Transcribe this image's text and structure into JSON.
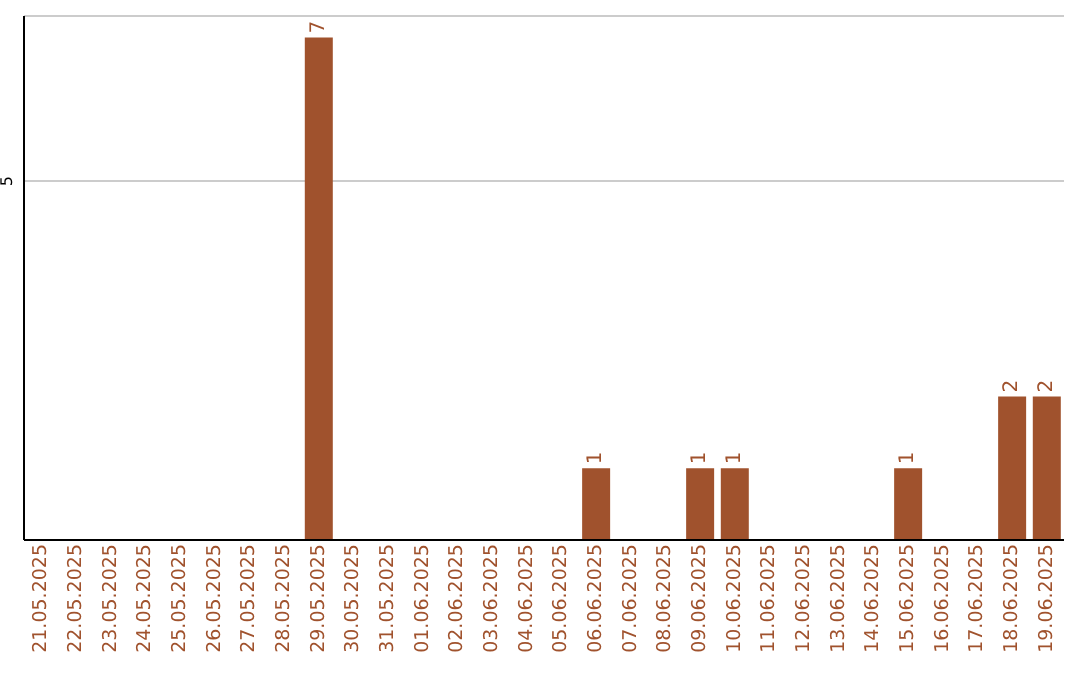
{
  "chart_data": {
    "type": "bar",
    "categories": [
      "21.05.2025",
      "22.05.2025",
      "23.05.2025",
      "24.05.2025",
      "25.05.2025",
      "26.05.2025",
      "27.05.2025",
      "28.05.2025",
      "29.05.2025",
      "30.05.2025",
      "31.05.2025",
      "01.06.2025",
      "02.06.2025",
      "03.06.2025",
      "04.06.2025",
      "05.06.2025",
      "06.06.2025",
      "07.06.2025",
      "08.06.2025",
      "09.06.2025",
      "10.06.2025",
      "11.06.2025",
      "12.06.2025",
      "13.06.2025",
      "14.06.2025",
      "15.06.2025",
      "16.06.2025",
      "17.06.2025",
      "18.06.2025",
      "19.06.2025"
    ],
    "values": [
      0,
      0,
      0,
      0,
      0,
      0,
      0,
      0,
      7,
      0,
      0,
      0,
      0,
      0,
      0,
      0,
      1,
      0,
      0,
      1,
      1,
      0,
      0,
      0,
      0,
      1,
      0,
      0,
      2,
      2
    ],
    "value_labels": [
      null,
      null,
      null,
      null,
      null,
      null,
      null,
      null,
      "7",
      null,
      null,
      null,
      null,
      null,
      null,
      null,
      "1",
      null,
      null,
      "1",
      "1",
      null,
      null,
      null,
      null,
      "1",
      null,
      null,
      "2",
      "2"
    ],
    "color": "#a0522d",
    "ylim": [
      0,
      7.3
    ],
    "yticks": [
      5
    ],
    "grid": "y"
  }
}
